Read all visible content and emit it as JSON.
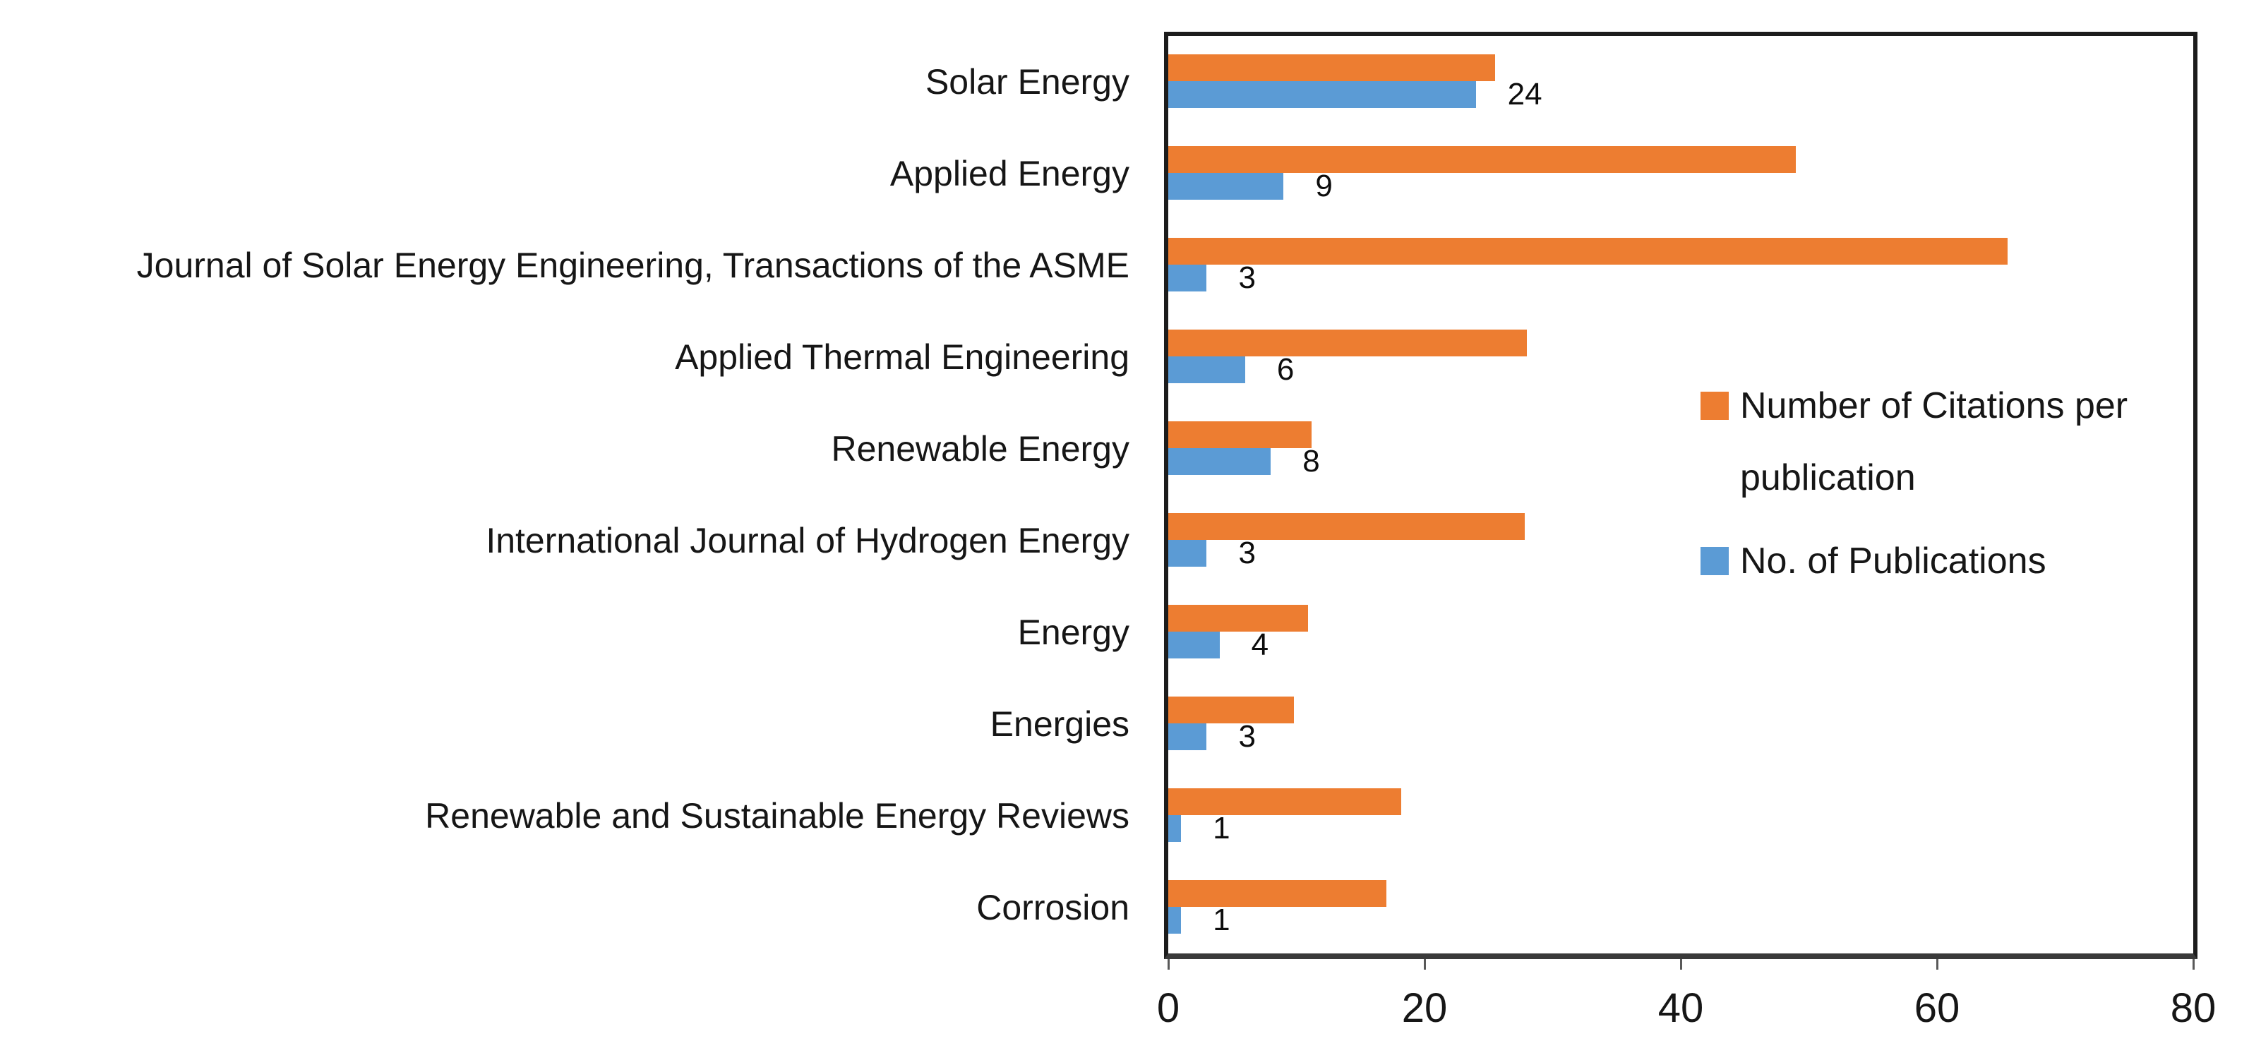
{
  "chart_data": {
    "type": "bar",
    "orientation": "horizontal",
    "title": "",
    "xlabel": "",
    "ylabel": "",
    "xlim": [
      0,
      80
    ],
    "x_ticks": [
      0,
      20,
      40,
      60,
      80
    ],
    "grid": false,
    "legend_position": "right-inside",
    "categories": [
      "Solar Energy",
      "Applied Energy",
      "Journal of Solar Energy Engineering, Transactions of the ASME",
      "Applied Thermal Engineering",
      "Renewable Energy",
      "International Journal of Hydrogen Energy",
      "Energy",
      "Energies",
      "Renewable and Sustainable Energy Reviews",
      "Corrosion"
    ],
    "series": [
      {
        "name": "Number of Citations per publication",
        "color": "#ED7D31",
        "values": [
          25.5,
          49,
          65.5,
          28,
          11.2,
          27.8,
          10.9,
          9.8,
          18.2,
          17
        ],
        "data_labels_shown": false
      },
      {
        "name": "No. of Publications",
        "color": "#5B9BD5",
        "values": [
          24,
          9,
          3,
          6,
          8,
          3,
          4,
          3,
          1,
          1
        ],
        "data_labels_shown": true,
        "data_labels": [
          "24",
          "9",
          "3",
          "6",
          "8",
          "3",
          "4",
          "3",
          "1",
          "1"
        ]
      }
    ]
  },
  "legend": {
    "items": [
      {
        "label": "Number of Citations per publication",
        "color": "#ED7D31"
      },
      {
        "label": "No. of Publications",
        "color": "#5B9BD5"
      }
    ]
  }
}
